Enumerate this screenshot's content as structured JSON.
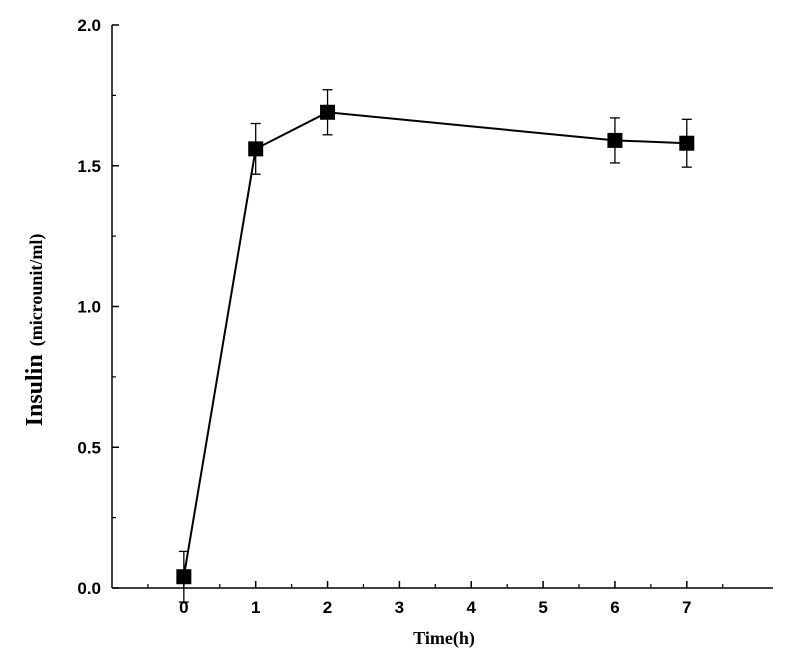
{
  "chart_data": {
    "type": "line",
    "title": "",
    "xlabel": "Time(h)",
    "ylabel_main": "Insulin",
    "ylabel_unit": "(microunit/ml)",
    "x_ticks": [
      "0",
      "1",
      "2",
      "3",
      "4",
      "5",
      "6",
      "7"
    ],
    "y_ticks": [
      "0.0",
      "0.5",
      "1.0",
      "1.5",
      "2.0"
    ],
    "xlim": [
      -1,
      8.2
    ],
    "ylim": [
      0,
      2.0
    ],
    "grid": false,
    "legend": "none",
    "marker": "square",
    "color": "#000000",
    "series": [
      {
        "points": [
          {
            "x": 0,
            "y": 0.04,
            "err": 0.09
          },
          {
            "x": 1,
            "y": 1.56,
            "err": 0.09
          },
          {
            "x": 2,
            "y": 1.69,
            "err": 0.08
          },
          {
            "x": 6,
            "y": 1.59,
            "err": 0.08
          },
          {
            "x": 7,
            "y": 1.58,
            "err": 0.085
          }
        ]
      }
    ]
  }
}
